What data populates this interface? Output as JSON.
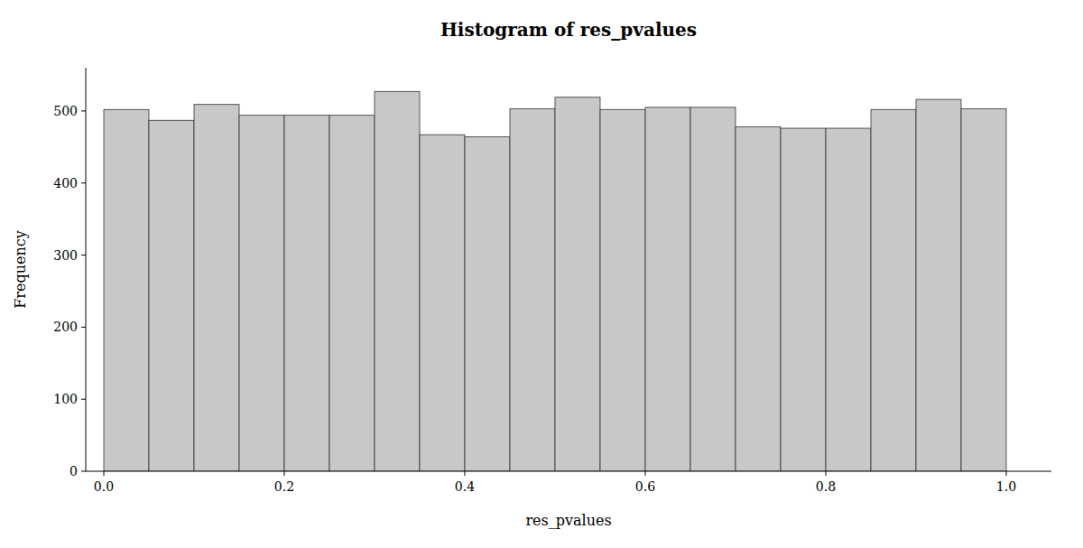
{
  "chart_data": {
    "type": "histogram",
    "title": "Histogram of res_pvalues",
    "x_label": "res_pvalues",
    "y_label": "Frequency",
    "bins": [
      0.0,
      0.05,
      0.1,
      0.15,
      0.2,
      0.25,
      0.3,
      0.35,
      0.4,
      0.45,
      0.5,
      0.55,
      0.6,
      0.65,
      0.7,
      0.75,
      0.8,
      0.85,
      0.9,
      0.95,
      1.0
    ],
    "values": [
      502,
      487,
      509,
      494,
      494,
      494,
      527,
      467,
      464,
      503,
      519,
      502,
      505,
      505,
      478,
      476,
      476,
      502,
      516,
      503
    ],
    "color": "#c8c8c8",
    "xlim": [
      -0.02,
      1.05
    ],
    "xticks": [
      {
        "value": 0.0,
        "label": "0.0"
      },
      0.2,
      0.4,
      0.6,
      0.8,
      {
        "value": 1.0,
        "label": "1.0"
      }
    ],
    "ylim": [
      0,
      560
    ],
    "yticks": [
      0,
      100,
      200,
      300,
      400,
      500
    ],
    "grid": false
  }
}
